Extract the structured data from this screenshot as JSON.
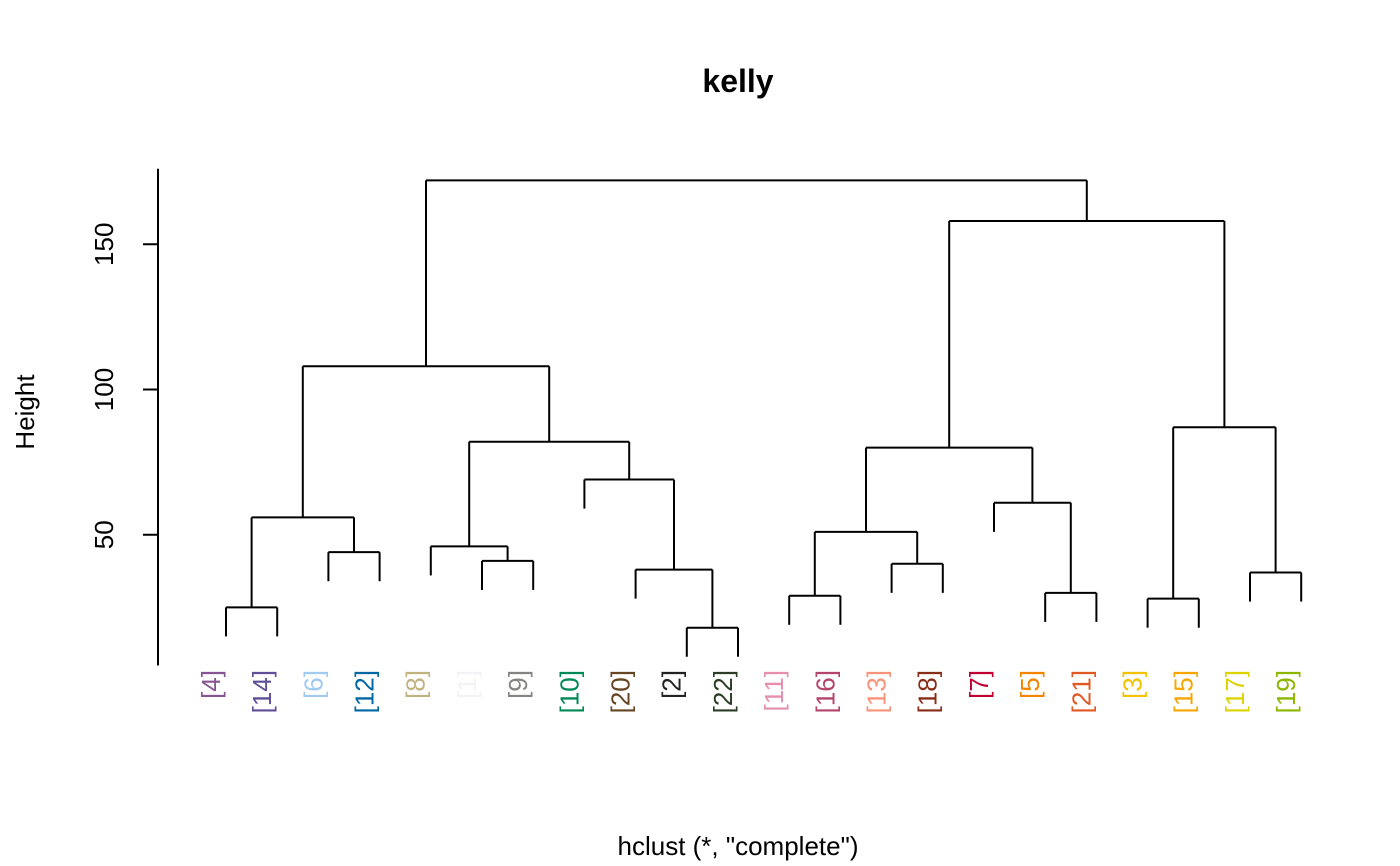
{
  "chart_data": {
    "type": "dendrogram",
    "title": "kelly",
    "ylabel": "Height",
    "xlabel": "hclust (*, \"complete\")",
    "ylim": [
      0,
      175
    ],
    "yticks": [
      50,
      100,
      150
    ],
    "leaf_order": [
      "[4]",
      "[14]",
      "[6]",
      "[12]",
      "[8]",
      "[1]",
      "[9]",
      "[10]",
      "[20]",
      "[2]",
      "[22]",
      "[11]",
      "[16]",
      "[13]",
      "[18]",
      "[7]",
      "[5]",
      "[21]",
      "[3]",
      "[15]",
      "[17]",
      "[19]"
    ],
    "leaf_colors": [
      "#875692",
      "#604E97",
      "#A1CAF1",
      "#0067A5",
      "#C2B280",
      "#F2F3F4",
      "#848482",
      "#008856",
      "#654522",
      "#222222",
      "#2B3D26",
      "#E68FAC",
      "#B3446C",
      "#F99379",
      "#882D17",
      "#BE0032",
      "#F38400",
      "#E25822",
      "#F3C300",
      "#F6A600",
      "#DCD300",
      "#8DB600"
    ],
    "merges": [
      {
        "a": 9,
        "b": 10,
        "height": 18
      },
      {
        "a": 0,
        "b": 1,
        "height": 25
      },
      {
        "a": 18,
        "b": 19,
        "height": 28
      },
      {
        "a": 11,
        "b": 12,
        "height": 29
      },
      {
        "a": 16,
        "b": 17,
        "height": 30
      },
      {
        "a": 20,
        "b": 21,
        "height": 37
      },
      {
        "a": 8,
        "b": "m1",
        "height": 38
      },
      {
        "a": 13,
        "b": 14,
        "height": 40
      },
      {
        "a": 5,
        "b": 6,
        "height": 41
      },
      {
        "a": 2,
        "b": 3,
        "height": 44
      },
      {
        "a": 4,
        "b": "m9",
        "height": 46
      },
      {
        "a": "m4",
        "b": "m8",
        "height": 51
      },
      {
        "a": "m2",
        "b": "m10",
        "height": 56
      },
      {
        "a": 15,
        "b": "m5",
        "height": 61
      },
      {
        "a": 7,
        "b": "m7",
        "height": 69
      },
      {
        "a": "m12",
        "b": "m14",
        "height": 80
      },
      {
        "a": "m11",
        "b": "m15",
        "height": 82
      },
      {
        "a": "m3",
        "b": "m6",
        "height": 87
      },
      {
        "a": "m13",
        "b": "m17",
        "height": 108
      },
      {
        "a": "m16",
        "b": "m18",
        "height": 158
      },
      {
        "a": "m19",
        "b": "m20",
        "height": 172
      }
    ]
  }
}
